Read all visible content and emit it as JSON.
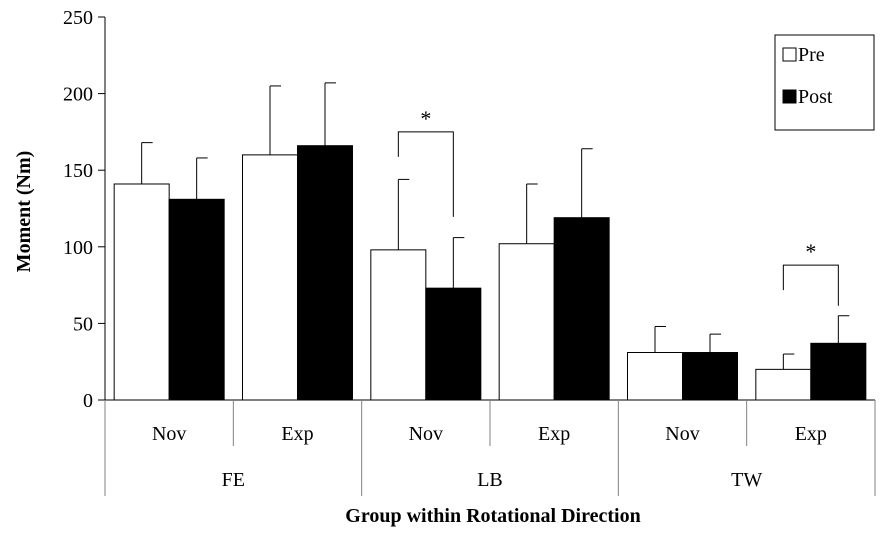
{
  "chart_data": {
    "type": "bar",
    "title": "",
    "xlabel": "Group within Rotational Direction",
    "ylabel": "Moment (Nm)",
    "ylim": [
      0,
      250
    ],
    "yticks": [
      "0",
      "50",
      "100",
      "150",
      "200",
      "250"
    ],
    "ytick_values": [
      0,
      50,
      100,
      150,
      200,
      250
    ],
    "grid": false,
    "legend_position": "top-right",
    "groups": [
      {
        "label": "FE",
        "categories": [
          "Nov",
          "Exp"
        ]
      },
      {
        "label": "LB",
        "categories": [
          "Nov",
          "Exp"
        ]
      },
      {
        "label": "TW",
        "categories": [
          "Nov",
          "Exp"
        ]
      }
    ],
    "categories": [
      "Nov",
      "Exp",
      "Nov",
      "Exp",
      "Nov",
      "Exp"
    ],
    "series": [
      {
        "name": "Pre",
        "color": "#ffffff",
        "values": [
          141,
          160,
          98,
          102,
          31,
          20
        ],
        "errors": [
          27,
          45,
          46,
          39,
          17,
          10
        ]
      },
      {
        "name": "Post",
        "color": "#000000",
        "values": [
          131,
          166,
          73,
          119,
          31,
          37
        ],
        "errors": [
          27,
          41,
          33,
          45,
          12,
          18
        ]
      }
    ],
    "annotations": [
      {
        "text": "*",
        "category_index": 2,
        "bracket_top": 175
      },
      {
        "text": "*",
        "category_index": 5,
        "bracket_top": 88
      }
    ]
  }
}
